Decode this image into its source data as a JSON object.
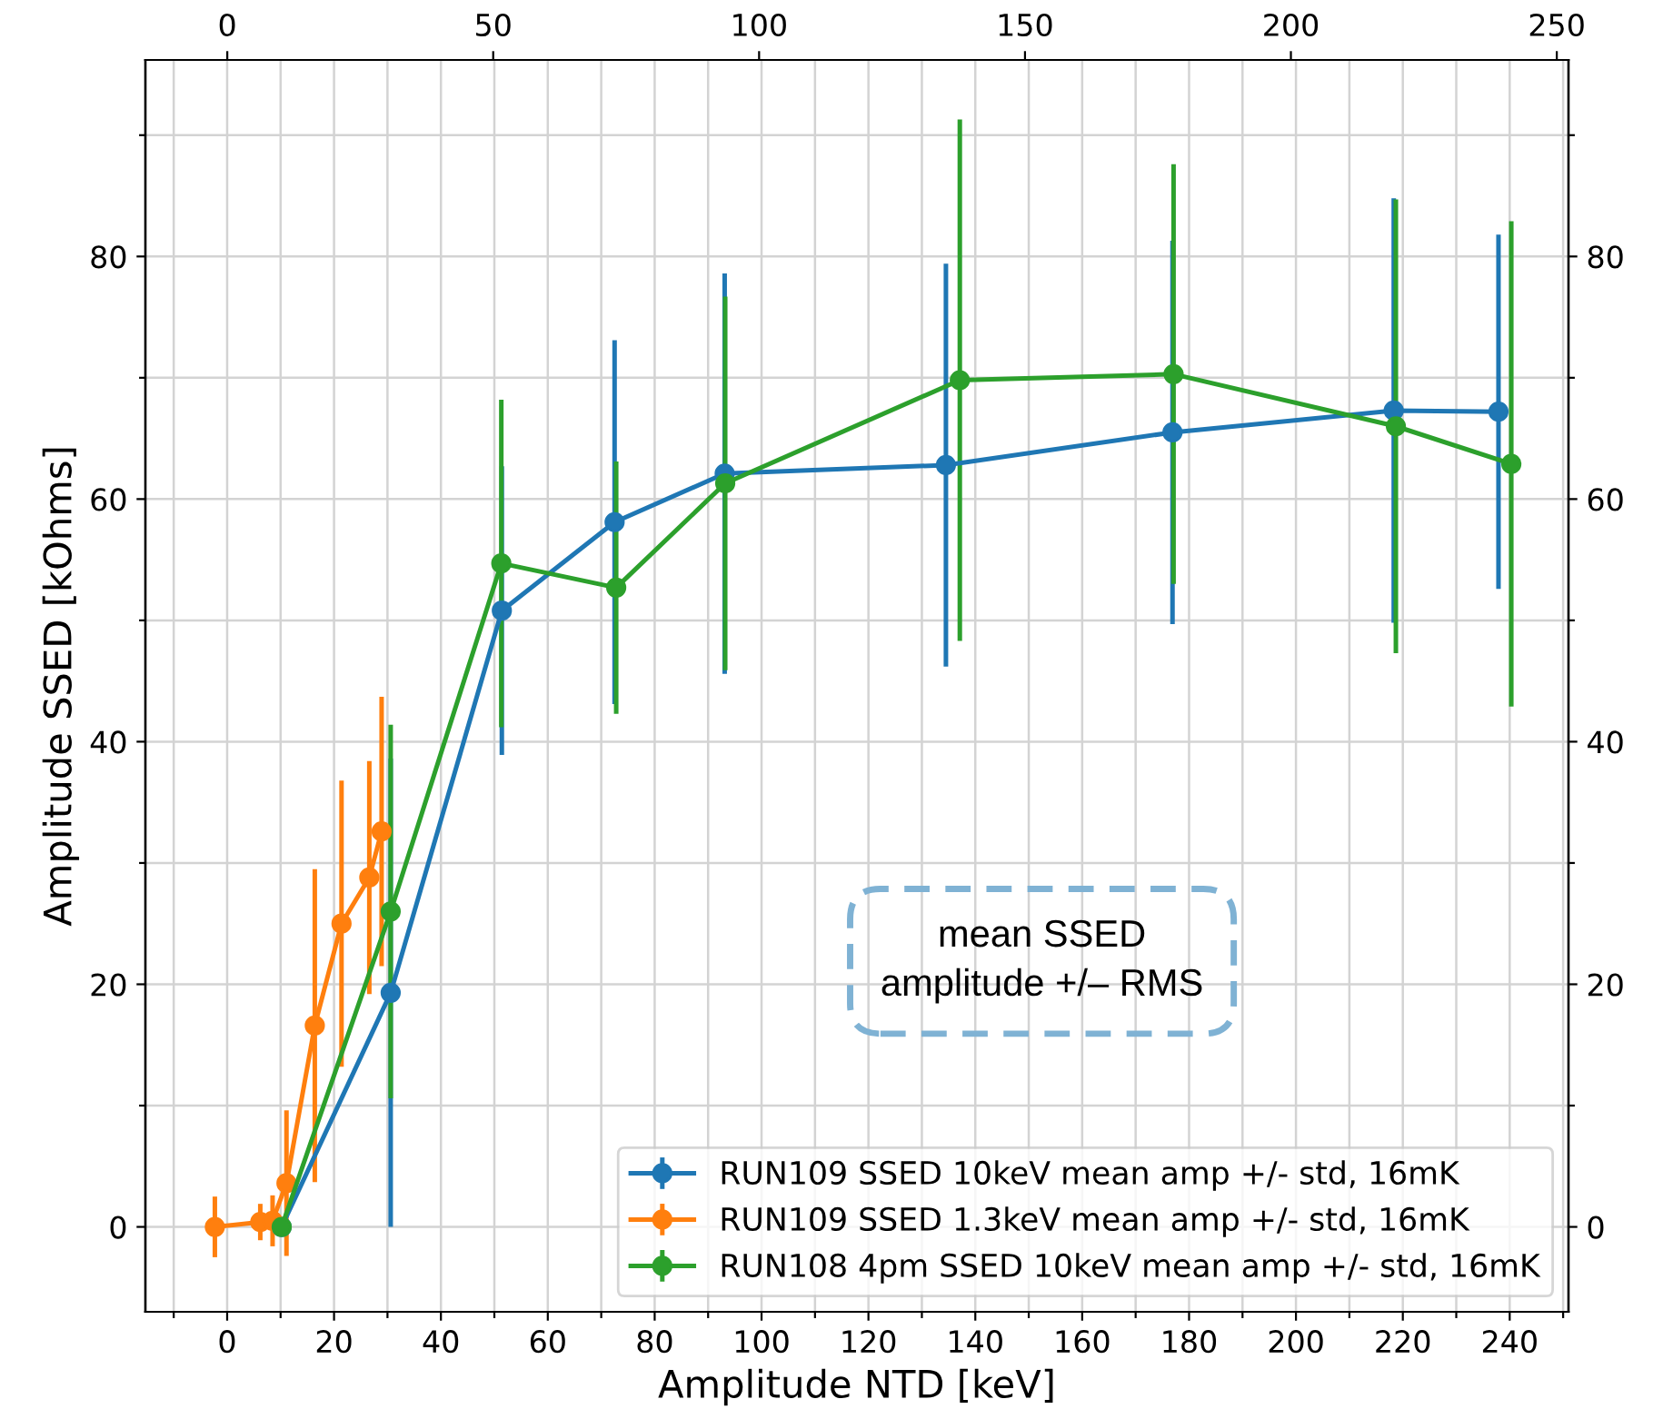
{
  "chart_data": {
    "type": "line",
    "xlabel": "Amplitude NTD [keV]",
    "ylabel": "Amplitude SSED [kOhms]",
    "series": [
      {
        "name": "RUN109 SSED 10keV mean amp +/- std, 16mK",
        "color": "#1f77b4",
        "x": [
          10.2,
          30.6,
          51.4,
          72.5,
          93.1,
          134.5,
          176.9,
          218.3,
          237.9
        ],
        "values": [
          0,
          19.3,
          50.8,
          58.1,
          62.1,
          62.8,
          65.5,
          67.3,
          67.2
        ],
        "errors": [
          null,
          19.3,
          11.9,
          15,
          16.5,
          16.6,
          15.8,
          17.5,
          14.6
        ]
      },
      {
        "name": "RUN109 SSED 1.3keV mean amp +/- std, 16mK",
        "color": "#ff7f0e",
        "x": [
          -2.3,
          6.2,
          8.5,
          11.1,
          16.4,
          21.4,
          26.6,
          28.9
        ],
        "values": [
          0,
          0.4,
          0.5,
          3.6,
          16.6,
          25.0,
          28.8,
          32.6
        ],
        "errors": [
          2.5,
          1.5,
          2.1,
          6,
          12.9,
          11.8,
          9.6,
          11.1
        ]
      },
      {
        "name": "RUN108 4pm SSED 10keV mean amp +/- std, 16mK",
        "color": "#2ca02c",
        "x": [
          10.2,
          30.6,
          51.3,
          72.8,
          93.2,
          137.1,
          177.1,
          218.7,
          240.3
        ],
        "values": [
          0,
          26.0,
          54.7,
          52.7,
          61.3,
          69.8,
          70.3,
          66.0,
          62.9
        ],
        "errors": [
          null,
          15.4,
          13.5,
          10.4,
          15.4,
          21.5,
          17.3,
          18.7,
          20
        ]
      }
    ],
    "xlim": [
      -15.3,
      251
    ],
    "xticks": [
      {
        "value": -10,
        "label": null
      },
      0,
      {
        "value": 10,
        "label": null
      },
      20,
      {
        "value": 30,
        "label": null
      },
      40,
      {
        "value": 50,
        "label": null
      },
      60,
      {
        "value": 70,
        "label": null
      },
      80,
      {
        "value": 90,
        "label": null
      },
      100,
      {
        "value": 110,
        "label": null
      },
      120,
      {
        "value": 130,
        "label": null
      },
      140,
      {
        "value": 150,
        "label": null
      },
      160,
      {
        "value": 170,
        "label": null
      },
      180,
      {
        "value": 190,
        "label": null
      },
      200,
      {
        "value": 210,
        "label": null
      },
      220,
      {
        "value": 230,
        "label": null
      },
      240,
      {
        "value": 250,
        "label": null
      }
    ],
    "x2lim": [
      -15.4,
      252.2
    ],
    "x2ticks": [
      0,
      50,
      100,
      150,
      200,
      250
    ],
    "ylim": [
      -7,
      96.2
    ],
    "yticks": [
      0,
      {
        "value": 10,
        "label": null
      },
      20,
      {
        "value": 30,
        "label": null
      },
      40,
      {
        "value": 50,
        "label": null
      },
      60,
      {
        "value": 70,
        "label": null
      },
      80,
      {
        "value": 90,
        "label": null
      }
    ],
    "y2lim": [
      -7,
      96.2
    ],
    "y2ticks": [
      0,
      {
        "value": 10,
        "label": null
      },
      20,
      {
        "value": 30,
        "label": null
      },
      40,
      {
        "value": 50,
        "label": null
      },
      60,
      {
        "value": 70,
        "label": null
      },
      80,
      {
        "value": 90,
        "label": null
      }
    ],
    "annotations": [
      "mean SSED\namplitude +/– RMS"
    ],
    "grid": true,
    "legend": "bottom right",
    "marker": "circle",
    "line_style": "solid"
  }
}
